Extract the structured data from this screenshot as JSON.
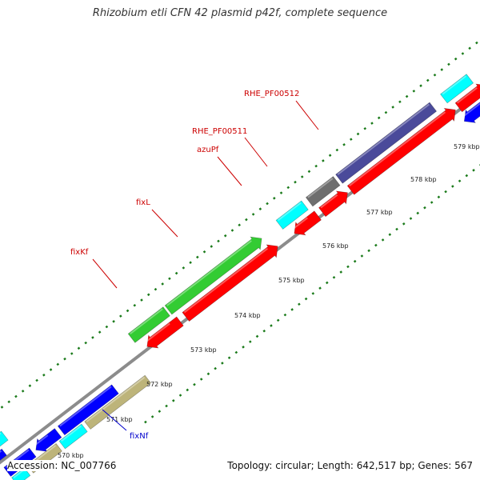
{
  "title": "Rhizobium etli CFN 42 plasmid p42f, complete sequence",
  "footer": {
    "accession": "Accession: NC_007766",
    "info": "Topology: circular; Length: 642,517 bp; Genes: 567"
  },
  "colors": {
    "backbone": "#8c8c8c",
    "forward_cds": "#00f",
    "reverse_cds": "#f00",
    "dots": "#1a7a1a",
    "label_red": "#cc0000",
    "label_blue": "#0000cc",
    "green": "#33cc33",
    "cyan": "#00ffff",
    "slate": "#4a4a9a",
    "grey": "#6e6e6e",
    "tan": "#bdb47a"
  },
  "ticks": [
    "570 kbp",
    "571 kbp",
    "572 kbp",
    "573 kbp",
    "574 kbp",
    "575 kbp",
    "576 kbp",
    "577 kbp",
    "578 kbp",
    "579 kbp"
  ],
  "gene_labels": [
    {
      "text": "fixKf",
      "color": "red"
    },
    {
      "text": "fixL",
      "color": "red"
    },
    {
      "text": "azuPf",
      "color": "red"
    },
    {
      "text": "RHE_PF00511",
      "color": "red"
    },
    {
      "text": "RHE_PF00512",
      "color": "red"
    },
    {
      "text": "fixNf",
      "color": "blue"
    }
  ],
  "features": [
    {
      "lane": "outer",
      "color": "green"
    },
    {
      "lane": "outer",
      "color": "green"
    },
    {
      "lane": "outer",
      "color": "cyan"
    },
    {
      "lane": "outer",
      "color": "grey"
    },
    {
      "lane": "outer",
      "color": "slate"
    },
    {
      "lane": "outer",
      "color": "cyan"
    },
    {
      "lane": "outer",
      "color": "cyan"
    },
    {
      "lane": "reverse",
      "color": "red"
    },
    {
      "lane": "reverse",
      "color": "red"
    },
    {
      "lane": "reverse",
      "color": "red"
    },
    {
      "lane": "reverse",
      "color": "red"
    },
    {
      "lane": "reverse",
      "color": "red"
    },
    {
      "lane": "reverse",
      "color": "red"
    },
    {
      "lane": "reverse",
      "color": "red"
    },
    {
      "lane": "forward",
      "color": "blue"
    },
    {
      "lane": "forward",
      "color": "blue"
    },
    {
      "lane": "forward",
      "color": "blue"
    },
    {
      "lane": "forward",
      "color": "blue"
    },
    {
      "lane": "forward",
      "color": "blue"
    },
    {
      "lane": "inner",
      "color": "tan"
    },
    {
      "lane": "inner",
      "color": "cyan"
    },
    {
      "lane": "inner",
      "color": "tan"
    },
    {
      "lane": "inner",
      "color": "cyan"
    }
  ]
}
